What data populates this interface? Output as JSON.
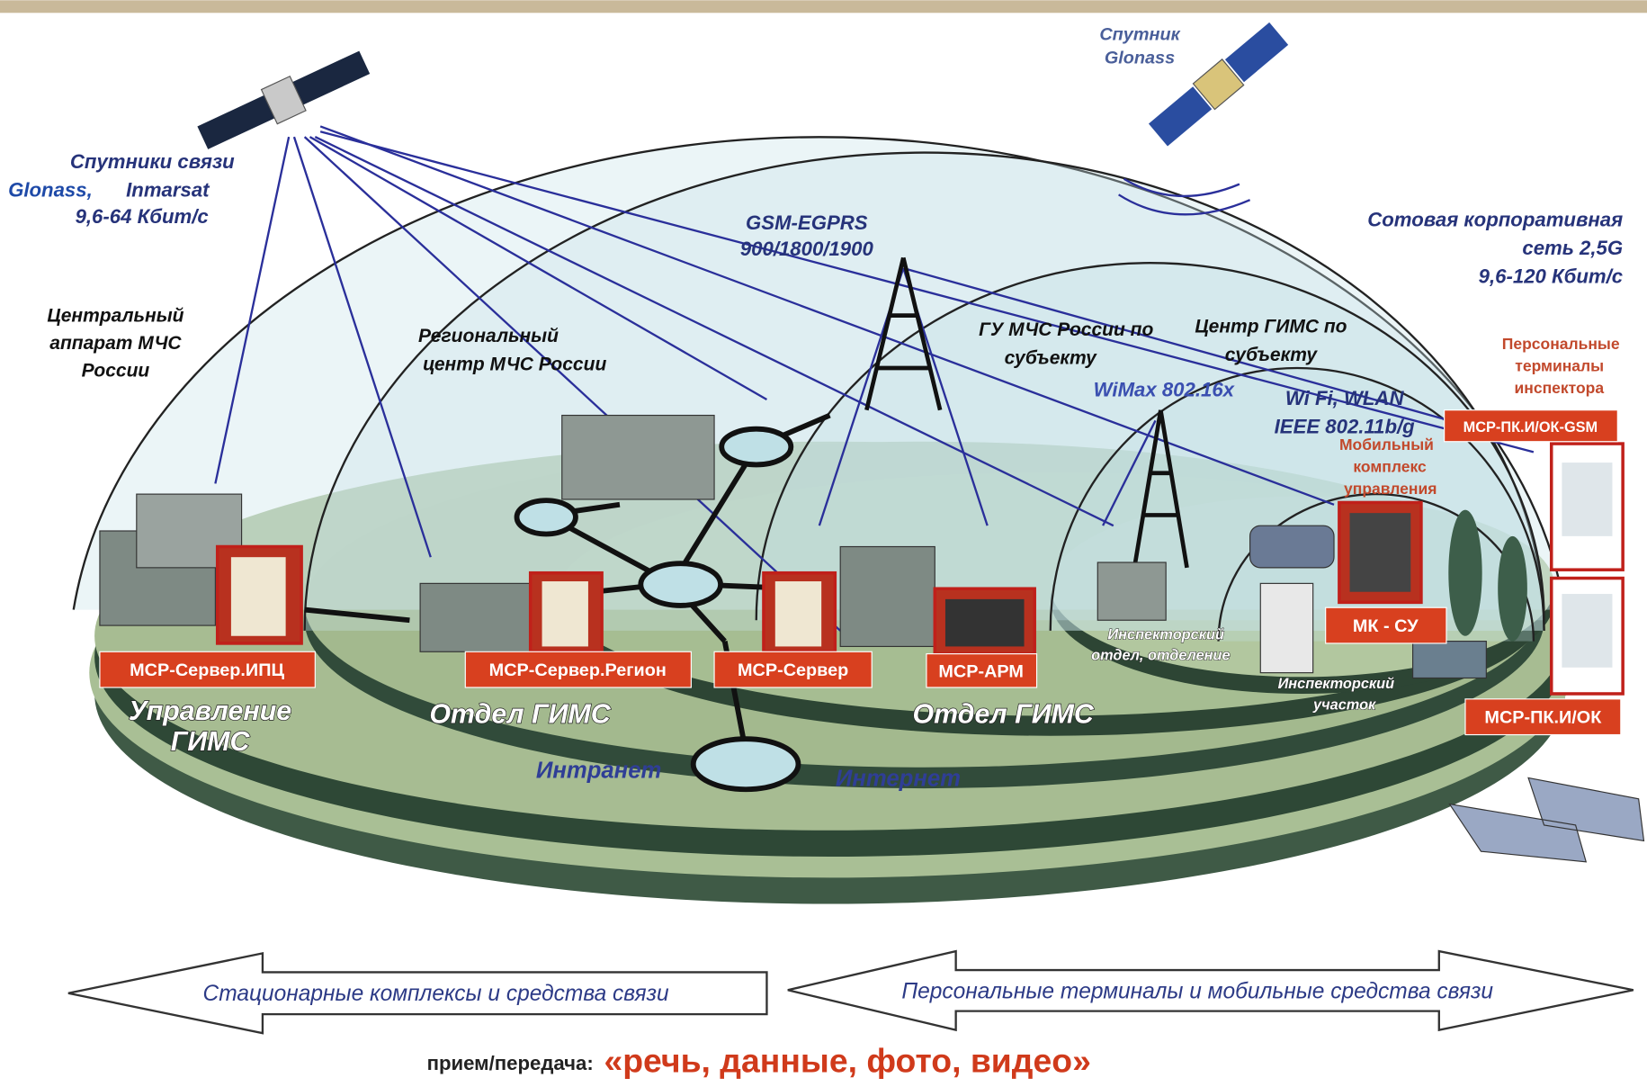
{
  "labels": {
    "comm_satellites": [
      "Спутники связи",
      "Glonass,",
      "Inmarsat",
      "9,6-64 Кбит/с"
    ],
    "glonass_satellite": [
      "Спутник",
      "Glonass"
    ],
    "gsm": [
      "GSM-EGPRS",
      "900/1800/1900"
    ],
    "cellular": [
      "Сотовая корпоративная",
      "сеть 2,5G",
      "9,6-120 Кбит/с"
    ],
    "central": [
      "Центральный",
      "аппарат МЧС",
      "России"
    ],
    "regional": [
      "Региональный",
      "центр МЧС России"
    ],
    "gu": [
      "ГУ МЧС России по",
      "субъекту"
    ],
    "gims_center": [
      "Центр ГИМС по",
      "субъекту"
    ],
    "wimax": "WiMax 802.16x",
    "wifi": [
      "Wi Fi, WLAN",
      "IEEE 802.11b/g"
    ],
    "personal_terminals": [
      "Персональные",
      "терминалы",
      "инспектора"
    ],
    "mobile_complex": [
      "Мобильный",
      "комплекс",
      "управления"
    ],
    "management": [
      "Управление",
      "ГИМС"
    ],
    "department_1": "Отдел ГИМС",
    "department_2": "Отдел ГИМС",
    "inspector_dept": [
      "Инспекторский",
      "отдел, отделение"
    ],
    "inspector_area": [
      "Инспекторский",
      "участок"
    ],
    "intranet": "Интранет",
    "internet": "Интернет"
  },
  "devices": [
    "МСР-ПК.И/ОК-GSM",
    "МСР-Сервер.ИПЦ",
    "МСР-Сервер.Регион",
    "МСР-Сервер",
    "МСР-АРМ",
    "МК - СУ",
    "МСР-ПК.И/ОК"
  ],
  "arrows": [
    "Стационарные комплексы и средства связи",
    "Персональные терминалы и мобильные средства связи"
  ],
  "footer": {
    "prefix": "прием/передача:",
    "content": "«речь, данные, фото, видео»"
  }
}
